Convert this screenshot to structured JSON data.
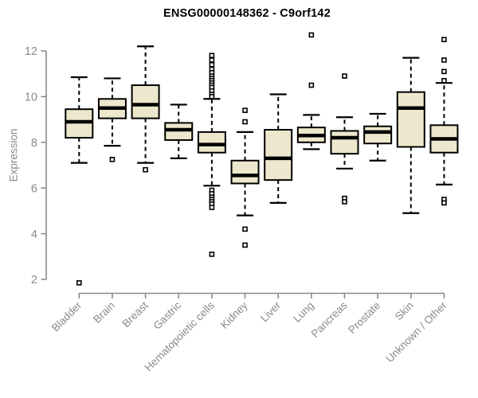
{
  "chart_data": {
    "type": "box",
    "title": "ENSG00000148362 - C9orf142",
    "ylabel": "Expression",
    "xlabel": "",
    "yticks": [
      2,
      4,
      6,
      8,
      10,
      12
    ],
    "ylim": [
      1.6,
      12.9
    ],
    "grid": false,
    "legend": "none",
    "categories": [
      "Bladder",
      "Brain",
      "Breast",
      "Gastric",
      "Hematopoietic cells",
      "Kidney",
      "Liver",
      "Lung",
      "Pancreas",
      "Prostate",
      "Skin",
      "Unknown / Other"
    ],
    "series": [
      {
        "name": "Bladder",
        "whisker_low": 7.1,
        "q1": 8.2,
        "median": 8.9,
        "q3": 9.45,
        "whisker_high": 10.85,
        "outliers": [
          1.85
        ]
      },
      {
        "name": "Brain",
        "whisker_low": 7.85,
        "q1": 9.05,
        "median": 9.5,
        "q3": 9.9,
        "whisker_high": 10.8,
        "outliers": [
          7.25
        ]
      },
      {
        "name": "Breast",
        "whisker_low": 7.1,
        "q1": 9.05,
        "median": 9.65,
        "q3": 10.5,
        "whisker_high": 12.2,
        "outliers": [
          6.8
        ]
      },
      {
        "name": "Gastric",
        "whisker_low": 7.3,
        "q1": 8.1,
        "median": 8.55,
        "q3": 8.85,
        "whisker_high": 9.65,
        "outliers": []
      },
      {
        "name": "Hematopoietic cells",
        "whisker_low": 6.1,
        "q1": 7.55,
        "median": 7.9,
        "q3": 8.45,
        "whisker_high": 9.9,
        "outliers": [
          11.8,
          11.6,
          11.4,
          11.2,
          11.05,
          10.9,
          10.8,
          10.7,
          10.6,
          10.5,
          10.4,
          10.25,
          10.1,
          10.0,
          5.9,
          5.75,
          5.6,
          5.5,
          5.4,
          5.3,
          5.15,
          3.1
        ]
      },
      {
        "name": "Kidney",
        "whisker_low": 4.8,
        "q1": 6.2,
        "median": 6.55,
        "q3": 7.2,
        "whisker_high": 8.45,
        "outliers": [
          9.4,
          8.9,
          4.2,
          3.5
        ]
      },
      {
        "name": "Liver",
        "whisker_low": 5.35,
        "q1": 6.35,
        "median": 7.3,
        "q3": 8.55,
        "whisker_high": 10.1,
        "outliers": []
      },
      {
        "name": "Lung",
        "whisker_low": 7.7,
        "q1": 8.0,
        "median": 8.3,
        "q3": 8.65,
        "whisker_high": 9.2,
        "outliers": [
          12.7,
          10.5
        ]
      },
      {
        "name": "Pancreas",
        "whisker_low": 6.85,
        "q1": 7.5,
        "median": 8.2,
        "q3": 8.5,
        "whisker_high": 9.1,
        "outliers": [
          10.9,
          5.55,
          5.4
        ]
      },
      {
        "name": "Prostate",
        "whisker_low": 7.2,
        "q1": 7.95,
        "median": 8.45,
        "q3": 8.7,
        "whisker_high": 9.25,
        "outliers": []
      },
      {
        "name": "Skin",
        "whisker_low": 4.9,
        "q1": 7.8,
        "median": 9.5,
        "q3": 10.2,
        "whisker_high": 11.7,
        "outliers": []
      },
      {
        "name": "Unknown / Other",
        "whisker_low": 6.15,
        "q1": 7.55,
        "median": 8.15,
        "q3": 8.75,
        "whisker_high": 10.6,
        "outliers": [
          12.5,
          11.6,
          11.1,
          10.7,
          5.5,
          5.35
        ]
      }
    ]
  },
  "colors": {
    "box_fill": "#EDE8CD",
    "box_stroke": "#000000",
    "median": "#000000",
    "whisker": "#000000",
    "outlier_stroke": "#000000",
    "outlier_fill": "#FFFFFF",
    "axis": "#8A8A8A",
    "tick_label": "#8A8A8A",
    "title": "#000000",
    "background": "#FFFFFF"
  }
}
